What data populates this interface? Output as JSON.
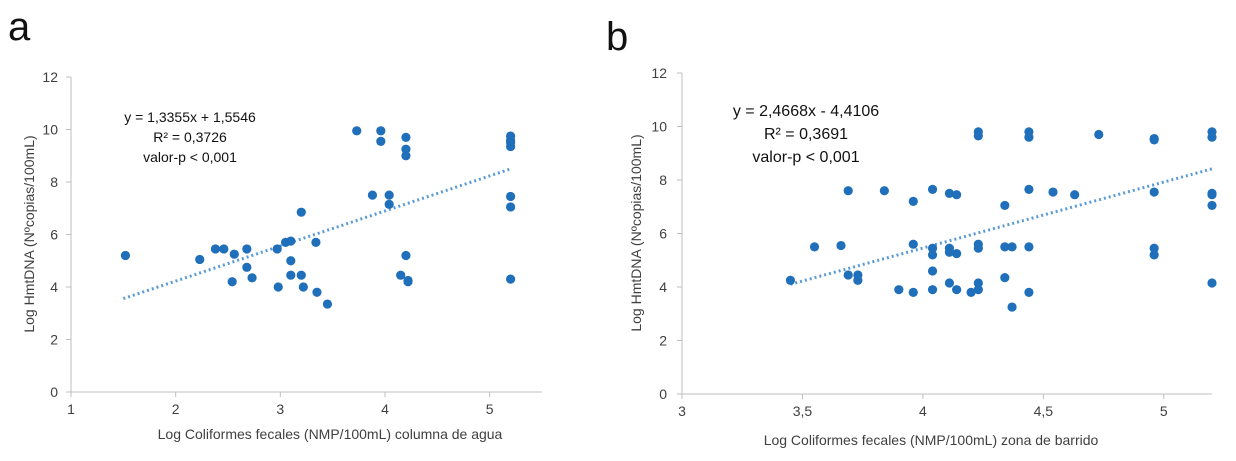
{
  "colors": {
    "points": "#1f6fba",
    "trend": "#5b9bd5",
    "axis": "#bfbfbf",
    "text": "#404040"
  },
  "chart_data": [
    {
      "panel": "a",
      "type": "scatter",
      "xlabel": "Log Coliformes fecales (NMP/100mL) columna de agua",
      "ylabel": "Log HmtDNA (Nºcopias/100mL)",
      "xlim": [
        1,
        5.5
      ],
      "ylim": [
        0,
        12
      ],
      "xticks": [
        1,
        2,
        3,
        4,
        5
      ],
      "yticks": [
        0,
        2,
        4,
        6,
        8,
        10,
        12
      ],
      "grid": false,
      "trendline": {
        "slope": 1.3355,
        "intercept": 1.5546,
        "x_range": [
          1.5,
          5.2
        ]
      },
      "annotation": [
        "y = 1,3355x + 1,5546",
        "R² = 0,3726",
        "valor-p < 0,001"
      ],
      "points": [
        [
          1.52,
          5.2
        ],
        [
          2.23,
          5.05
        ],
        [
          2.38,
          5.45
        ],
        [
          2.46,
          5.45
        ],
        [
          2.54,
          4.2
        ],
        [
          2.56,
          5.25
        ],
        [
          2.68,
          5.45
        ],
        [
          2.68,
          4.75
        ],
        [
          2.73,
          4.35
        ],
        [
          2.97,
          5.45
        ],
        [
          2.98,
          4.0
        ],
        [
          3.05,
          5.7
        ],
        [
          3.1,
          5.75
        ],
        [
          3.1,
          5.0
        ],
        [
          3.1,
          4.45
        ],
        [
          3.2,
          6.85
        ],
        [
          3.2,
          4.45
        ],
        [
          3.22,
          4.0
        ],
        [
          3.34,
          5.7
        ],
        [
          3.35,
          3.8
        ],
        [
          3.45,
          3.35
        ],
        [
          3.73,
          9.95
        ],
        [
          3.88,
          7.5
        ],
        [
          3.96,
          9.95
        ],
        [
          3.96,
          9.55
        ],
        [
          4.04,
          7.5
        ],
        [
          4.04,
          7.15
        ],
        [
          4.15,
          4.45
        ],
        [
          4.2,
          9.7
        ],
        [
          4.2,
          9.25
        ],
        [
          4.2,
          9.0
        ],
        [
          4.2,
          5.2
        ],
        [
          4.22,
          4.25
        ],
        [
          4.22,
          4.2
        ],
        [
          5.2,
          9.75
        ],
        [
          5.2,
          9.6
        ],
        [
          5.2,
          9.5
        ],
        [
          5.2,
          9.35
        ],
        [
          5.2,
          7.45
        ],
        [
          5.2,
          7.05
        ],
        [
          5.2,
          4.3
        ]
      ]
    },
    {
      "panel": "b",
      "type": "scatter",
      "xlabel": "Log Coliformes fecales (NMP/100mL) zona de barrido",
      "ylabel": "Log HmtDNA (Nºcopias/100mL)",
      "xlim": [
        3,
        5.2
      ],
      "ylim": [
        0,
        12
      ],
      "xticks": [
        3,
        3.5,
        4,
        4.5,
        5
      ],
      "xtick_labels": [
        "3",
        "3,5",
        "4",
        "4,5",
        "5"
      ],
      "yticks": [
        0,
        2,
        4,
        6,
        8,
        10,
        12
      ],
      "grid": false,
      "trendline": {
        "slope": 2.4668,
        "intercept": -4.4106,
        "x_range": [
          3.45,
          5.2
        ]
      },
      "annotation": [
        "y = 2,4668x - 4,4106",
        "R² = 0,3691",
        "valor-p < 0,001"
      ],
      "points": [
        [
          3.45,
          4.25
        ],
        [
          3.55,
          5.5
        ],
        [
          3.66,
          5.55
        ],
        [
          3.69,
          7.6
        ],
        [
          3.69,
          4.45
        ],
        [
          3.73,
          4.45
        ],
        [
          3.73,
          4.25
        ],
        [
          3.84,
          7.6
        ],
        [
          3.9,
          3.9
        ],
        [
          3.96,
          7.2
        ],
        [
          3.96,
          5.6
        ],
        [
          3.96,
          3.8
        ],
        [
          4.04,
          7.65
        ],
        [
          4.04,
          5.45
        ],
        [
          4.04,
          5.2
        ],
        [
          4.04,
          4.6
        ],
        [
          4.04,
          3.9
        ],
        [
          4.11,
          7.5
        ],
        [
          4.11,
          5.45
        ],
        [
          4.11,
          5.3
        ],
        [
          4.11,
          4.15
        ],
        [
          4.14,
          7.45
        ],
        [
          4.14,
          5.25
        ],
        [
          4.14,
          3.9
        ],
        [
          4.2,
          3.8
        ],
        [
          4.23,
          9.8
        ],
        [
          4.23,
          9.65
        ],
        [
          4.23,
          5.6
        ],
        [
          4.23,
          5.45
        ],
        [
          4.23,
          4.15
        ],
        [
          4.23,
          3.9
        ],
        [
          4.34,
          7.05
        ],
        [
          4.34,
          5.5
        ],
        [
          4.34,
          4.35
        ],
        [
          4.37,
          5.5
        ],
        [
          4.37,
          3.25
        ],
        [
          4.44,
          9.8
        ],
        [
          4.44,
          9.6
        ],
        [
          4.44,
          7.65
        ],
        [
          4.44,
          5.5
        ],
        [
          4.44,
          3.8
        ],
        [
          4.54,
          7.55
        ],
        [
          4.63,
          7.45
        ],
        [
          4.73,
          9.7
        ],
        [
          4.96,
          9.55
        ],
        [
          4.96,
          9.5
        ],
        [
          4.96,
          7.55
        ],
        [
          4.96,
          5.45
        ],
        [
          4.96,
          5.2
        ],
        [
          5.2,
          9.8
        ],
        [
          5.2,
          9.6
        ],
        [
          5.2,
          7.5
        ],
        [
          5.2,
          7.45
        ],
        [
          5.2,
          7.05
        ],
        [
          5.2,
          4.15
        ]
      ]
    }
  ]
}
